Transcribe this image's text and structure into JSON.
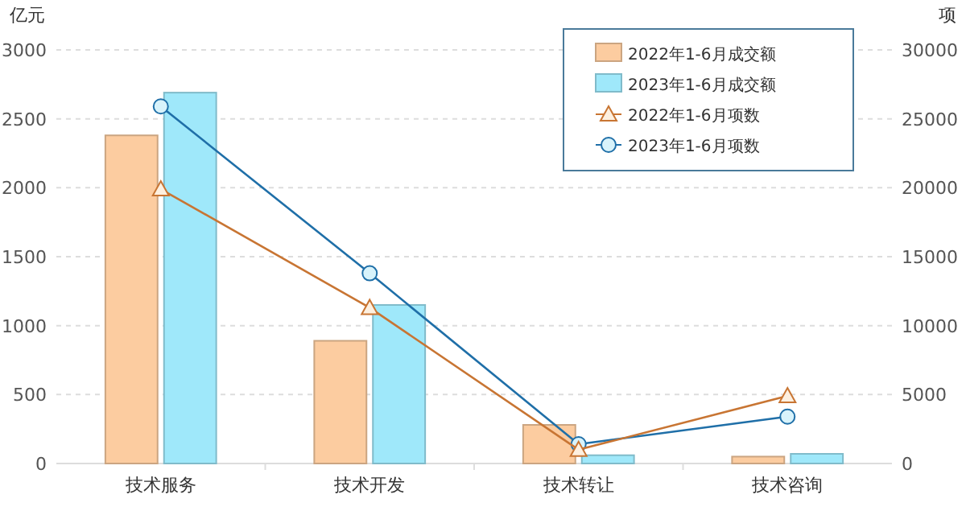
{
  "chart_data": {
    "type": "bar",
    "ylabel": "亿元",
    "y2label": "项",
    "categories": [
      "技术服务",
      "技术开发",
      "技术转让",
      "技术咨询"
    ],
    "series": [
      {
        "name": "2022年1-6月成交额",
        "color": "#fccca0",
        "values": [
          2380,
          890,
          280,
          50
        ]
      },
      {
        "name": "2023年1-6月成交额",
        "color": "#9fe8fa",
        "values": [
          2690,
          1150,
          60,
          70
        ]
      },
      {
        "name": "2022年1-6月项数",
        "type": "line",
        "axis": "y2",
        "marker": "triangle",
        "color": "#c87533",
        "values": [
          19900,
          11300,
          1000,
          4900
        ]
      },
      {
        "name": "2023年1-6月项数",
        "type": "line",
        "axis": "y2",
        "marker": "circle",
        "color": "#1f6fa8",
        "values": [
          25900,
          13800,
          1400,
          3400
        ]
      }
    ],
    "ylim": [
      0,
      3000
    ],
    "yticks": [
      0,
      500,
      1000,
      1500,
      2000,
      2500,
      3000
    ],
    "y2lim": [
      0,
      30000
    ],
    "y2ticks": [
      0,
      5000,
      10000,
      15000,
      20000,
      25000,
      30000
    ],
    "grid": "y",
    "legend": "top right"
  }
}
